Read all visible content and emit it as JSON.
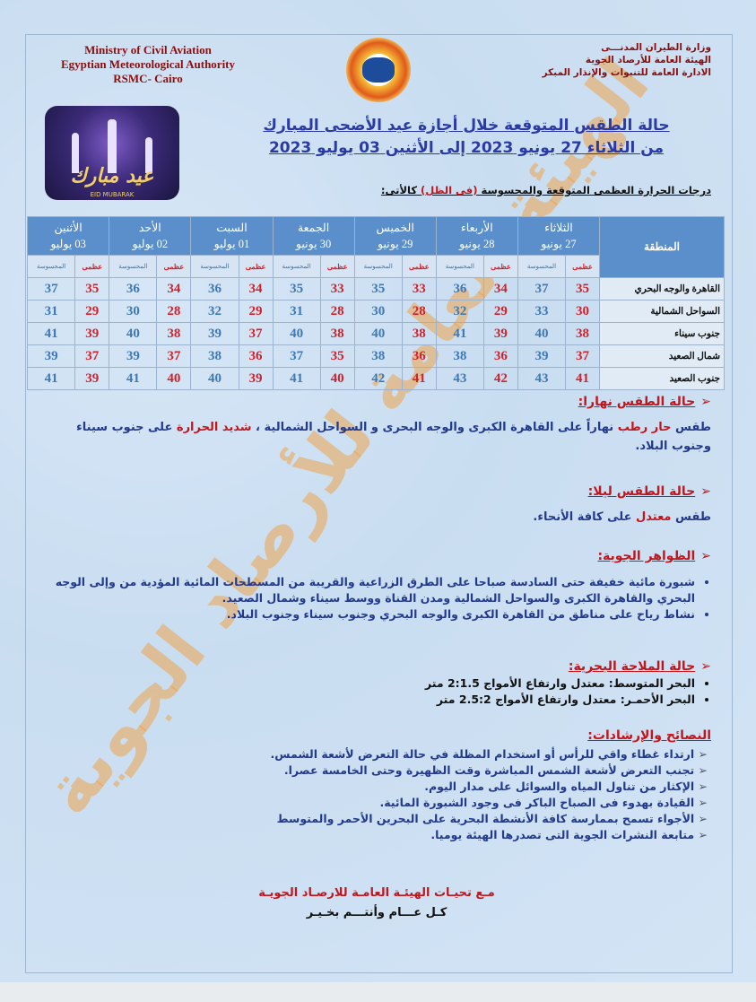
{
  "header": {
    "en_lines": [
      "Ministry of Civil Aviation",
      "Egyptian Meteorological Authority",
      "RSMC- Cairo"
    ],
    "ar_lines": [
      "وزارة الطيران المدنـــى",
      "الهيئة العامة للأرصاد الجوية",
      "الادارة العامة للتنبوات والإنذار المبكر"
    ],
    "eid_text": "عيد مبارك",
    "eid_sub": "EID MUBARAK"
  },
  "title": [
    "حالة الطقس المتوقعة خلال أجازة عيد الأضحى المبارك",
    "من  الثلاثاء  27 يونيو  2023  إلى  الأثنين 03 يوليو 2023"
  ],
  "table_label": {
    "a": "درجات الحرارة العظمى  المتوقعة والمحسوسة ",
    "b": "(فى الظل)",
    "c": " كالأتى:"
  },
  "table": {
    "region_header": "المنطقة",
    "max_label": "عظمى",
    "feel_label": "المحسوسة",
    "days": [
      {
        "day": "الثلاثاء",
        "date": "27 يونيو"
      },
      {
        "day": "الأربعاء",
        "date": "28 يونيو"
      },
      {
        "day": "الخميس",
        "date": "29 يونيو"
      },
      {
        "day": "الجمعة",
        "date": "30 يونيو"
      },
      {
        "day": "السبت",
        "date": "01 يوليو"
      },
      {
        "day": "الأحد",
        "date": "02 يوليو"
      },
      {
        "day": "الأثنين",
        "date": "03 يوليو"
      }
    ],
    "rows": [
      {
        "region": "القاهرة والوجه البحري",
        "values": [
          [
            35,
            37
          ],
          [
            34,
            36
          ],
          [
            33,
            35
          ],
          [
            33,
            35
          ],
          [
            34,
            36
          ],
          [
            34,
            36
          ],
          [
            35,
            37
          ]
        ]
      },
      {
        "region": "السواحل الشمالية",
        "values": [
          [
            30,
            33
          ],
          [
            29,
            32
          ],
          [
            28,
            30
          ],
          [
            28,
            31
          ],
          [
            29,
            32
          ],
          [
            28,
            30
          ],
          [
            29,
            31
          ]
        ]
      },
      {
        "region": "جنوب سيناء",
        "values": [
          [
            38,
            40
          ],
          [
            39,
            41
          ],
          [
            38,
            40
          ],
          [
            38,
            40
          ],
          [
            37,
            39
          ],
          [
            38,
            40
          ],
          [
            39,
            41
          ]
        ]
      },
      {
        "region": "شمال الصعيد",
        "values": [
          [
            37,
            39
          ],
          [
            36,
            38
          ],
          [
            36,
            38
          ],
          [
            35,
            37
          ],
          [
            36,
            38
          ],
          [
            37,
            39
          ],
          [
            37,
            39
          ]
        ]
      },
      {
        "region": "جنوب الصعيد",
        "values": [
          [
            41,
            43
          ],
          [
            42,
            43
          ],
          [
            41,
            42
          ],
          [
            40,
            41
          ],
          [
            39,
            40
          ],
          [
            40,
            41
          ],
          [
            39,
            41
          ]
        ]
      }
    ]
  },
  "day_weather": {
    "title": "حالة الطقس نهارا:",
    "t1": "طقس ",
    "t2": "حار رطب",
    "t3": " نهاراً على القاهرة الكبرى والوجه البحرى و السواحل الشمالية ، ",
    "t4": "شديد الحرارة",
    "t5": " على جنوب سيناء  وجنوب البلاد."
  },
  "night_weather": {
    "title": "حالة الطقس ليلا:",
    "t1": "طقس ",
    "t2": "معتدل",
    "t3": " على كافة الأنحاء."
  },
  "phenomena": {
    "title": "الظواهر الجوية:",
    "items": [
      "شبورة مائية خفيفة حتى السادسة صباحا على الطرق الزراعية والقريبة من المسطحات المائية المؤدية من وإلى الوجه البحري والقاهرة الكبرى والسواحل الشمالية ومدن القناة ووسط سيناء وشمال الصعيد.",
      "نشاط رياح على مناطق من القاهرة الكبرى  والوجه البحري وجنوب سيناء وجنوب البلاد."
    ]
  },
  "marine": {
    "title": "حالة الملاحة البحرية:",
    "items": [
      {
        "sea": "البحر المتوسط: ",
        "state": "معتدل وارتفاع الأمواج 2:1.5 متر"
      },
      {
        "sea": "البحر الأحمـر: ",
        "state": "معتدل وارتفاع الأمواج 2.5:2 متر"
      }
    ]
  },
  "advice": {
    "title": "النصائح والإرشادات:",
    "items": [
      "ارتداء غطاء واقي للرأس أو استخدام المظلة في حالة التعرض لأشعة الشمس.",
      "تجنب التعرض لأشعة الشمس المباشرة وقت الظهيرة وحتى الخامسة عصرا.",
      "الإكثار من تناول المياه والسوائل على مدار اليوم.",
      "القيادة بهدوء فى الصباح الباكر فى وجود الشبورة المائية.",
      "الأجواء تسمح بممارسة كافة الأنشطة البحرية على البحرين الأحمر والمتوسط",
      "متابعة النشرات الجوية التى تصدرها الهيئة يوميا."
    ]
  },
  "footer": [
    "مـع تحيـات الهيئـة العامـة للارصـاد الجويـة",
    "كـل عـــام وأنتـــم بخـيـر"
  ],
  "watermark": "الهيئة العامة للأرصاد الجوية",
  "colors": {
    "header_blue": "#5a8fcb",
    "max_red": "#d1222b",
    "feel_blue": "#3e79b6",
    "title_blue": "#2b3aa6",
    "heading_red": "#c0161c"
  }
}
